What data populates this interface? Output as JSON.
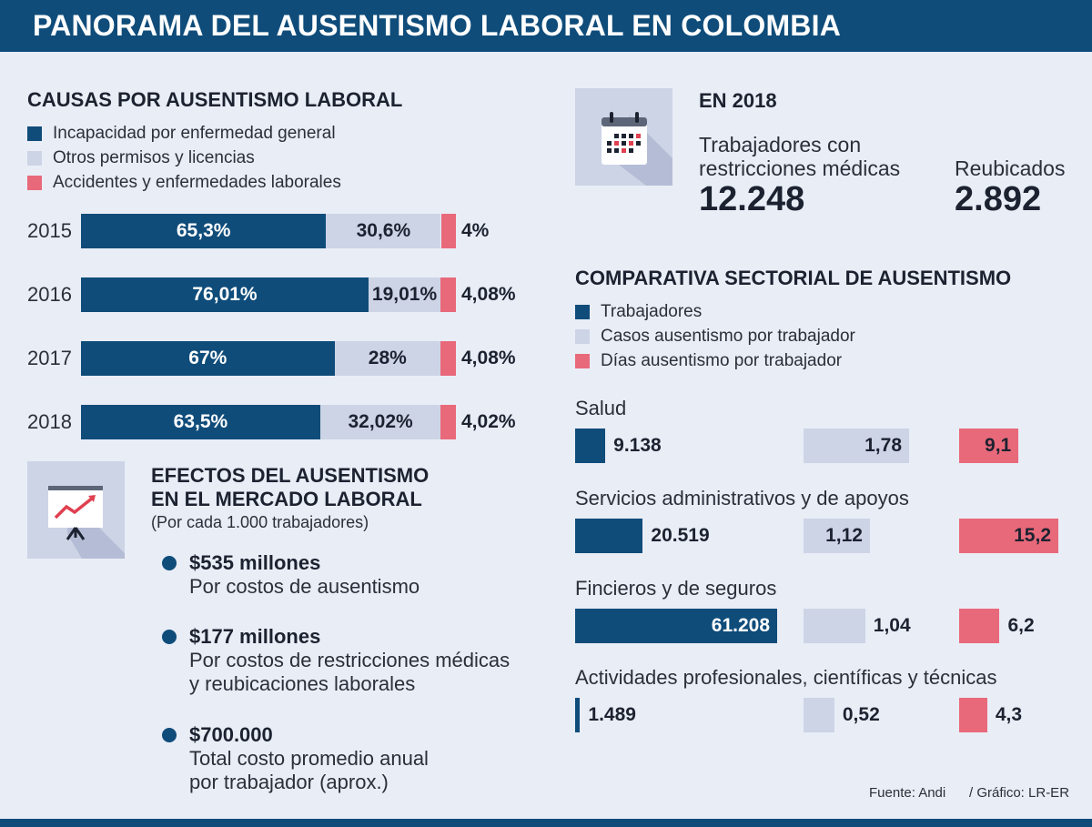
{
  "title": "PANORAMA DEL AUSENTISMO LABORAL EN COLOMBIA",
  "causas": {
    "heading": "CAUSAS POR AUSENTISMO LABORAL",
    "legend": [
      {
        "label": "Incapacidad por enfermedad general",
        "color": "#0f4c7a"
      },
      {
        "label": "Otros permisos y licencias",
        "color": "#cdd4e6"
      },
      {
        "label": "Accidentes y enfermedades laborales",
        "color": "#e8697a"
      }
    ]
  },
  "chart_data": [
    {
      "type": "bar",
      "orientation": "horizontal-stacked",
      "title": "CAUSAS POR AUSENTISMO LABORAL",
      "categories": [
        "2015",
        "2016",
        "2017",
        "2018"
      ],
      "series": [
        {
          "name": "Incapacidad por enfermedad general",
          "values": [
            65.3,
            76.01,
            67,
            63.5
          ],
          "labels": [
            "65,3%",
            "76,01%",
            "67%",
            "63,5%"
          ],
          "color": "#0f4c7a"
        },
        {
          "name": "Otros permisos y licencias",
          "values": [
            30.6,
            19.01,
            28,
            32.02
          ],
          "labels": [
            "30,6%",
            "19,01%",
            "28%",
            "32,02%"
          ],
          "color": "#cdd4e6"
        },
        {
          "name": "Accidentes y enfermedades laborales",
          "values": [
            4,
            4.08,
            4.08,
            4.02
          ],
          "labels": [
            "4%",
            "4,08%",
            "4,08%",
            "4,02%"
          ],
          "color": "#e8697a"
        }
      ],
      "legend": "top-left",
      "grid": false
    },
    {
      "type": "bar",
      "orientation": "horizontal-grouped",
      "title": "COMPARATIVA SECTORIAL DE AUSENTISMO",
      "categories": [
        "Salud",
        "Servicios administrativos y de apoyos",
        "Fincieros y de seguros",
        "Actividades profesionales, científicas y técnicas"
      ],
      "series": [
        {
          "name": "Trabajadores",
          "values": [
            9138,
            20519,
            61208,
            1489
          ],
          "labels": [
            "9.138",
            "20.519",
            "61.208",
            "1.489"
          ],
          "color": "#0f4c7a"
        },
        {
          "name": "Casos ausentismo por trabajador",
          "values": [
            1.78,
            1.12,
            1.04,
            0.52
          ],
          "labels": [
            "1,78",
            "1,12",
            "1,04",
            "0,52"
          ],
          "color": "#cdd4e6"
        },
        {
          "name": "Días ausentismo por trabajador",
          "values": [
            9.1,
            15.2,
            6.2,
            4.3
          ],
          "labels": [
            "9,1",
            "15,2",
            "6,2",
            "4,3"
          ],
          "color": "#e8697a"
        }
      ],
      "legend": "top-left",
      "grid": false
    }
  ],
  "en2018": {
    "heading": "EN 2018",
    "icon": "calendar-icon",
    "stat1_label_line1": "Trabajadores con",
    "stat1_label_line2": "restricciones médicas",
    "stat1_value": "12.248",
    "stat2_label": "Reubicados",
    "stat2_value": "2.892"
  },
  "sectorial": {
    "heading": "COMPARATIVA SECTORIAL DE AUSENTISMO",
    "legend": [
      {
        "label": "Trabajadores",
        "color": "#0f4c7a"
      },
      {
        "label": "Casos ausentismo por trabajador",
        "color": "#cdd4e6"
      },
      {
        "label": "Días ausentismo por trabajador",
        "color": "#e8697a"
      }
    ]
  },
  "efectos": {
    "icon": "presentation-chart-icon",
    "heading_line1": "EFECTOS DEL AUSENTISMO",
    "heading_line2": "EN EL MERCADO LABORAL",
    "subheading": "(Por cada 1.000 trabajadores)",
    "items": [
      {
        "value": "$535 millones",
        "desc_line1": "Por costos de ausentismo",
        "desc_line2": ""
      },
      {
        "value": "$177 millones",
        "desc_line1": "Por costos de restricciones médicas",
        "desc_line2": "y reubicaciones laborales"
      },
      {
        "value": "$700.000",
        "desc_line1": "Total costo promedio anual",
        "desc_line2": "por trabajador (aprox.)"
      }
    ]
  },
  "footer": {
    "source": "Fuente: Andi",
    "credit": "/ Gráfico: LR-ER"
  }
}
